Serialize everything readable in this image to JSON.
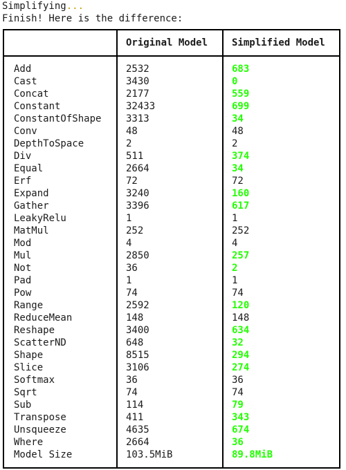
{
  "terminal": {
    "line1_text": "Simplifying",
    "line1_dots": "...",
    "line2_text": "Finish! Here is the difference:"
  },
  "table": {
    "headers": [
      "",
      "Original Model",
      "Simplified Model"
    ],
    "rows": [
      {
        "op": "Add",
        "original": "2532",
        "simplified": "683",
        "changed": true
      },
      {
        "op": "Cast",
        "original": "3430",
        "simplified": "0",
        "changed": true
      },
      {
        "op": "Concat",
        "original": "2177",
        "simplified": "559",
        "changed": true
      },
      {
        "op": "Constant",
        "original": "32433",
        "simplified": "699",
        "changed": true
      },
      {
        "op": "ConstantOfShape",
        "original": "3313",
        "simplified": "34",
        "changed": true
      },
      {
        "op": "Conv",
        "original": "48",
        "simplified": "48",
        "changed": false
      },
      {
        "op": "DepthToSpace",
        "original": "2",
        "simplified": "2",
        "changed": false
      },
      {
        "op": "Div",
        "original": "511",
        "simplified": "374",
        "changed": true
      },
      {
        "op": "Equal",
        "original": "2664",
        "simplified": "34",
        "changed": true
      },
      {
        "op": "Erf",
        "original": "72",
        "simplified": "72",
        "changed": false
      },
      {
        "op": "Expand",
        "original": "3240",
        "simplified": "160",
        "changed": true
      },
      {
        "op": "Gather",
        "original": "3396",
        "simplified": "617",
        "changed": true
      },
      {
        "op": "LeakyRelu",
        "original": "1",
        "simplified": "1",
        "changed": false
      },
      {
        "op": "MatMul",
        "original": "252",
        "simplified": "252",
        "changed": false
      },
      {
        "op": "Mod",
        "original": "4",
        "simplified": "4",
        "changed": false
      },
      {
        "op": "Mul",
        "original": "2850",
        "simplified": "257",
        "changed": true
      },
      {
        "op": "Not",
        "original": "36",
        "simplified": "2",
        "changed": true
      },
      {
        "op": "Pad",
        "original": "1",
        "simplified": "1",
        "changed": false
      },
      {
        "op": "Pow",
        "original": "74",
        "simplified": "74",
        "changed": false
      },
      {
        "op": "Range",
        "original": "2592",
        "simplified": "120",
        "changed": true
      },
      {
        "op": "ReduceMean",
        "original": "148",
        "simplified": "148",
        "changed": false
      },
      {
        "op": "Reshape",
        "original": "3400",
        "simplified": "634",
        "changed": true
      },
      {
        "op": "ScatterND",
        "original": "648",
        "simplified": "32",
        "changed": true
      },
      {
        "op": "Shape",
        "original": "8515",
        "simplified": "294",
        "changed": true
      },
      {
        "op": "Slice",
        "original": "3106",
        "simplified": "274",
        "changed": true
      },
      {
        "op": "Softmax",
        "original": "36",
        "simplified": "36",
        "changed": false
      },
      {
        "op": "Sqrt",
        "original": "74",
        "simplified": "74",
        "changed": false
      },
      {
        "op": "Sub",
        "original": "114",
        "simplified": "79",
        "changed": true
      },
      {
        "op": "Transpose",
        "original": "411",
        "simplified": "343",
        "changed": true
      },
      {
        "op": "Unsqueeze",
        "original": "4635",
        "simplified": "674",
        "changed": true
      },
      {
        "op": "Where",
        "original": "2664",
        "simplified": "36",
        "changed": true
      },
      {
        "op": "Model Size",
        "original": "103.5MiB",
        "simplified": "89.8MiB",
        "changed": true
      }
    ]
  },
  "colors": {
    "changed_value": "#22ff00",
    "dots": "#c4a000"
  }
}
